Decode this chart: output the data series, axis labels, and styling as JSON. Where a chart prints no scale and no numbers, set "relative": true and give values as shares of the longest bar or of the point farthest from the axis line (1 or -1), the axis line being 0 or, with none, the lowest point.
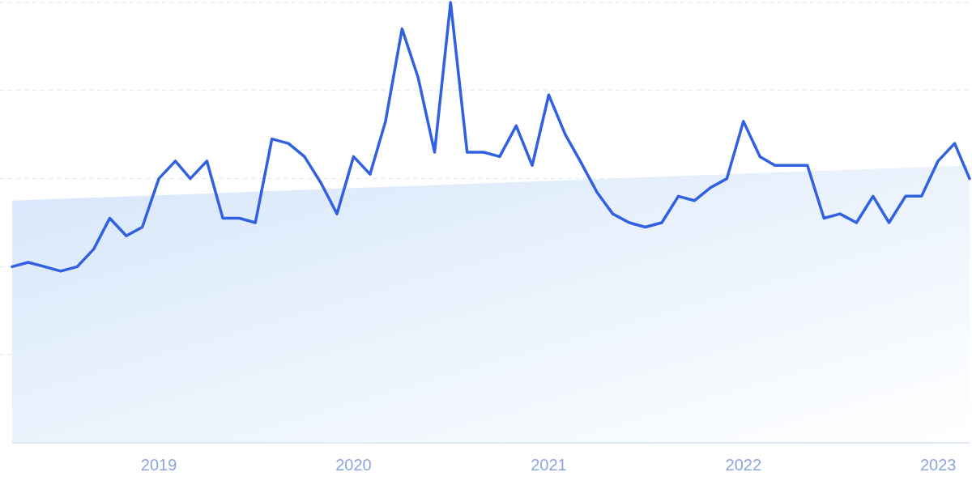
{
  "chart_data": {
    "type": "line",
    "relative": true,
    "grid": "y",
    "xlim": [
      "2018-04",
      "2023-03"
    ],
    "xticks": [
      "2019",
      "2020",
      "2021",
      "2022",
      "2023"
    ],
    "series": [
      {
        "type": "area",
        "color": "#d6e6fa",
        "x": [
          "2018-04",
          "2023-03"
        ],
        "values": [
          0.55,
          0.63
        ]
      },
      {
        "color": "#3160e0",
        "x": [
          "2018-04",
          "2018-05",
          "2018-06",
          "2018-07",
          "2018-08",
          "2018-09",
          "2018-10",
          "2018-11",
          "2018-12",
          "2019-01",
          "2019-02",
          "2019-03",
          "2019-04",
          "2019-05",
          "2019-06",
          "2019-07",
          "2019-08",
          "2019-09",
          "2019-10",
          "2019-11",
          "2019-12",
          "2020-01",
          "2020-02",
          "2020-03",
          "2020-04",
          "2020-05",
          "2020-06",
          "2020-07",
          "2020-08",
          "2020-09",
          "2020-10",
          "2020-11",
          "2020-12",
          "2021-01",
          "2021-02",
          "2021-03",
          "2021-04",
          "2021-05",
          "2021-06",
          "2021-07",
          "2021-08",
          "2021-09",
          "2021-10",
          "2021-11",
          "2021-12",
          "2022-01",
          "2022-02",
          "2022-03",
          "2022-04",
          "2022-05",
          "2022-06",
          "2022-07",
          "2022-08",
          "2022-09",
          "2022-10",
          "2022-11",
          "2022-12",
          "2023-01",
          "2023-02",
          "2023-03"
        ],
        "values": [
          0.4,
          0.41,
          0.4,
          0.39,
          0.4,
          0.44,
          0.51,
          0.47,
          0.49,
          0.6,
          0.64,
          0.6,
          0.64,
          0.51,
          0.51,
          0.5,
          0.69,
          0.68,
          0.65,
          0.59,
          0.52,
          0.65,
          0.61,
          0.73,
          0.94,
          0.83,
          0.66,
          1,
          0.66,
          0.66,
          0.65,
          0.72,
          0.63,
          0.79,
          0.7,
          0.64,
          0.57,
          0.52,
          0.5,
          0.49,
          0.5,
          0.56,
          0.55,
          0.58,
          0.6,
          0.73,
          0.65,
          0.63,
          0.63,
          0.63,
          0.51,
          0.52,
          0.5,
          0.56,
          0.5,
          0.56,
          0.56,
          0.64,
          0.68,
          0.6
        ]
      }
    ]
  }
}
